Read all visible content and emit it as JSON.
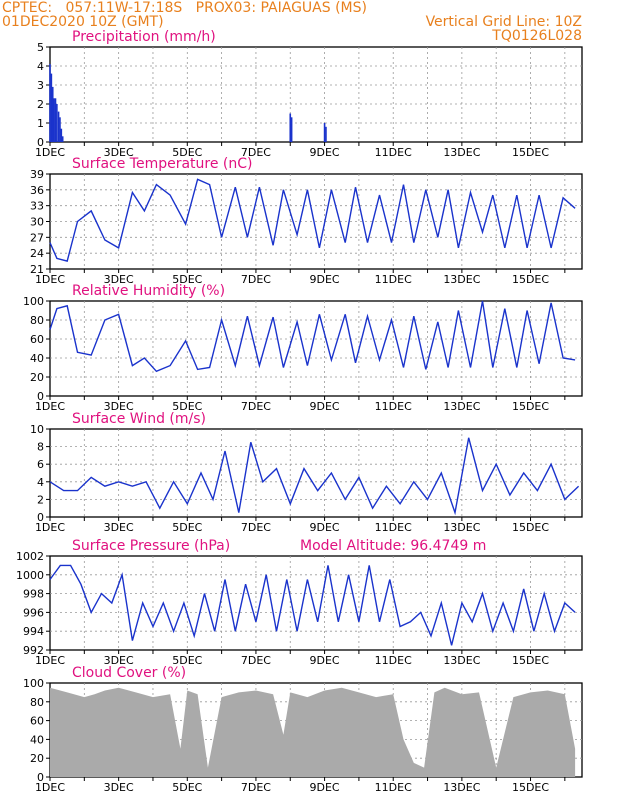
{
  "header": {
    "left_line1": "CPTEC:   057:11W-17:18S   PROX03: PAIAGUAS (MS)",
    "left_line2": "01DEC2020 10Z (GMT)",
    "right_line1": "Vertical Grid Line: 10Z",
    "right_line2": "TQ0126L028"
  },
  "colors": {
    "header": "#e8801e",
    "title": "#e0117f",
    "series": "#1a33cc",
    "bar": "#1a33cc",
    "cloud": "#aaaaaa",
    "grid": "#999999"
  },
  "chart_data": [
    {
      "type": "bar",
      "title": "Precipitation (mm/h)",
      "x_tick_labels": [
        "1DEC",
        "3DEC",
        "5DEC",
        "7DEC",
        "9DEC",
        "11DEC",
        "13DEC",
        "15DEC"
      ],
      "ylim": [
        0,
        5
      ],
      "yticks": [
        0,
        1,
        2,
        3,
        4,
        5
      ],
      "x": [
        0,
        0.04,
        0.08,
        0.12,
        0.16,
        0.2,
        0.25,
        0.29,
        0.33,
        0.37,
        7,
        7.04,
        8,
        8.04
      ],
      "values": [
        4.1,
        3.6,
        2.9,
        2.3,
        2.3,
        2.0,
        1.6,
        1.3,
        0.7,
        0.3,
        1.5,
        1.3,
        1.0,
        0.8
      ]
    },
    {
      "type": "line",
      "title": "Surface Temperature (nC)",
      "x_tick_labels": [
        "1DEC",
        "3DEC",
        "5DEC",
        "7DEC",
        "9DEC",
        "11DEC",
        "13DEC",
        "15DEC"
      ],
      "ylim": [
        21,
        39
      ],
      "yticks": [
        21,
        24,
        27,
        30,
        33,
        36,
        39
      ],
      "x": [
        0,
        0.2,
        0.5,
        0.8,
        1.2,
        1.6,
        2.0,
        2.4,
        2.75,
        3.1,
        3.5,
        3.95,
        4.3,
        4.65,
        5.0,
        5.4,
        5.75,
        6.1,
        6.5,
        6.8,
        7.2,
        7.5,
        7.85,
        8.2,
        8.6,
        8.9,
        9.25,
        9.6,
        9.95,
        10.3,
        10.6,
        10.95,
        11.3,
        11.6,
        11.9,
        12.25,
        12.6,
        12.9,
        13.25,
        13.6,
        13.9,
        14.25,
        14.6,
        14.95,
        15.3
      ],
      "values": [
        26,
        23,
        22.5,
        30,
        32,
        26.5,
        25,
        35.5,
        32,
        37,
        35,
        29.5,
        38,
        37,
        27,
        36.5,
        27,
        36.5,
        25.5,
        36,
        27.5,
        36,
        25,
        36,
        26,
        36.5,
        26,
        35,
        26,
        37,
        26,
        36,
        27,
        36,
        25,
        35.5,
        28,
        35,
        25,
        35,
        25,
        35,
        25,
        34.5,
        32.5
      ],
      "series_name": ""
    },
    {
      "type": "line",
      "title": "Relative Humidity (%)",
      "x_tick_labels": [
        "1DEC",
        "3DEC",
        "5DEC",
        "7DEC",
        "9DEC",
        "11DEC",
        "13DEC",
        "15DEC"
      ],
      "ylim": [
        0,
        100
      ],
      "yticks": [
        0,
        20,
        40,
        60,
        80,
        100
      ],
      "x": [
        0,
        0.2,
        0.5,
        0.8,
        1.2,
        1.6,
        2.0,
        2.4,
        2.75,
        3.1,
        3.5,
        3.95,
        4.3,
        4.65,
        5.0,
        5.4,
        5.75,
        6.1,
        6.5,
        6.8,
        7.2,
        7.5,
        7.85,
        8.2,
        8.6,
        8.9,
        9.25,
        9.6,
        9.95,
        10.3,
        10.6,
        10.95,
        11.3,
        11.6,
        11.9,
        12.25,
        12.6,
        12.9,
        13.25,
        13.6,
        13.9,
        14.25,
        14.6,
        14.95,
        15.3
      ],
      "values": [
        70,
        92,
        95,
        46,
        43,
        80,
        86,
        32,
        40,
        26,
        32,
        58,
        28,
        30,
        80,
        32,
        84,
        32,
        83,
        30,
        78,
        32,
        86,
        38,
        86,
        35,
        84,
        38,
        80,
        30,
        84,
        28,
        78,
        30,
        90,
        30,
        100,
        30,
        92,
        30,
        90,
        34,
        98,
        40,
        38
      ]
    },
    {
      "type": "line",
      "title": "Surface Wind (m/s)",
      "x_tick_labels": [
        "1DEC",
        "3DEC",
        "5DEC",
        "7DEC",
        "9DEC",
        "11DEC",
        "13DEC",
        "15DEC"
      ],
      "ylim": [
        0,
        10
      ],
      "yticks": [
        0,
        2,
        4,
        6,
        8,
        10
      ],
      "x": [
        0,
        0.4,
        0.8,
        1.2,
        1.6,
        2.0,
        2.4,
        2.8,
        3.2,
        3.6,
        4.0,
        4.4,
        4.75,
        5.1,
        5.5,
        5.85,
        6.2,
        6.6,
        7.0,
        7.4,
        7.8,
        8.2,
        8.6,
        9.0,
        9.4,
        9.8,
        10.2,
        10.6,
        11.0,
        11.4,
        11.8,
        12.2,
        12.6,
        13.0,
        13.4,
        13.8,
        14.2,
        14.6,
        15.0,
        15.4
      ],
      "values": [
        4,
        3,
        3,
        4.5,
        3.5,
        4,
        3.5,
        4,
        1,
        4,
        1.5,
        5,
        2,
        7.5,
        0.5,
        8.5,
        4,
        5.5,
        1.5,
        5.5,
        3,
        5,
        2,
        4.5,
        1,
        3.5,
        1.5,
        4,
        2,
        5,
        0.5,
        9,
        3,
        6,
        2.5,
        5,
        3,
        6,
        2,
        3.5
      ]
    },
    {
      "type": "line",
      "title": "Surface Pressure (hPa)",
      "annotation": "Model Altitude: 96.4749  m",
      "x_tick_labels": [
        "1DEC",
        "3DEC",
        "5DEC",
        "7DEC",
        "9DEC",
        "11DEC",
        "13DEC",
        "15DEC"
      ],
      "ylim": [
        992,
        1002
      ],
      "yticks": [
        992,
        994,
        996,
        998,
        1000,
        1002
      ],
      "x": [
        0,
        0.3,
        0.6,
        0.9,
        1.2,
        1.5,
        1.8,
        2.1,
        2.4,
        2.7,
        3.0,
        3.3,
        3.6,
        3.9,
        4.2,
        4.5,
        4.8,
        5.1,
        5.4,
        5.7,
        6.0,
        6.3,
        6.6,
        6.9,
        7.2,
        7.5,
        7.8,
        8.1,
        8.4,
        8.7,
        9.0,
        9.3,
        9.6,
        9.9,
        10.2,
        10.5,
        10.8,
        11.1,
        11.4,
        11.7,
        12.0,
        12.3,
        12.6,
        12.9,
        13.2,
        13.5,
        13.8,
        14.1,
        14.4,
        14.7,
        15.0,
        15.3
      ],
      "values": [
        999.5,
        1001,
        1001,
        999,
        996,
        998,
        997,
        1000,
        993,
        997,
        994.5,
        997,
        994,
        997,
        993.5,
        998,
        994,
        999.5,
        994,
        999,
        995,
        1000,
        994,
        999.5,
        994,
        999.5,
        995,
        1001,
        995,
        1000,
        995,
        1001,
        995,
        999.5,
        994.5,
        995,
        996,
        993.5,
        997,
        992.5,
        997,
        995,
        998,
        994,
        997,
        994,
        998.5,
        994,
        998,
        994,
        997,
        996
      ]
    },
    {
      "type": "area",
      "title": "Cloud Cover (%)",
      "x_tick_labels": [
        "1DEC",
        "3DEC",
        "5DEC",
        "7DEC",
        "9DEC",
        "11DEC",
        "13DEC",
        "15DEC"
      ],
      "ylim": [
        0,
        100
      ],
      "yticks": [
        0,
        20,
        40,
        60,
        80,
        100
      ],
      "x": [
        0,
        0.5,
        1.0,
        1.3,
        1.6,
        2.0,
        2.5,
        3.0,
        3.5,
        3.8,
        4.0,
        4.3,
        4.6,
        5.0,
        5.5,
        6.0,
        6.5,
        6.8,
        7.0,
        7.5,
        8.0,
        8.5,
        9.0,
        9.5,
        10.0,
        10.3,
        10.6,
        10.9,
        11.2,
        11.5,
        12.0,
        12.5,
        13.0,
        13.5,
        14.0,
        14.5,
        15.0,
        15.3
      ],
      "values": [
        95,
        90,
        85,
        88,
        92,
        95,
        90,
        85,
        88,
        30,
        92,
        88,
        10,
        85,
        90,
        92,
        88,
        45,
        90,
        85,
        92,
        95,
        90,
        85,
        88,
        40,
        15,
        10,
        90,
        95,
        88,
        90,
        10,
        85,
        90,
        92,
        88,
        30
      ]
    }
  ]
}
